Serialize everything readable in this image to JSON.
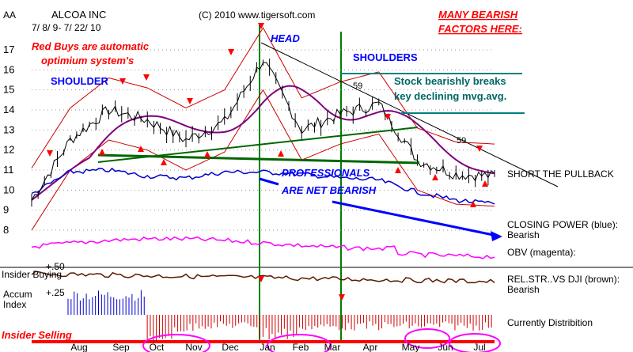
{
  "header": {
    "ticker": "AA",
    "company": "ALCOA INC",
    "dates": "7/ 8/ 9- 7/ 22/ 10",
    "copyright": "(C) 2010 www.tigersoft.com"
  },
  "annotations": {
    "red_buys": "Red Buys are automatic",
    "optimum": "optimium system's",
    "shoulder_left": "SHOULDER",
    "head": "HEAD",
    "shoulders_right": "SHOULDERS",
    "bearish_factors_1": "MANY BEARISH",
    "bearish_factors_2": "FACTORS HERE:",
    "breaks_1": "Stock bearishly breaks",
    "breaks_2": "key declining mvg.avg.",
    "professionals_1": "PROFESSIONALS",
    "professionals_2": "ARE NET BEARISH",
    "short_pullback": "SHORT THE PULLBACK",
    "closing_power_1": "CLOSING POWER (blue):",
    "closing_power_2": "Bearish",
    "obv": "OBV (magenta):",
    "relstr_1": "REL.STR..VS DJI (brown):",
    "relstr_2": "Bearish",
    "distribution": "Currently Distribition",
    "insider_buying": "Insider Buying",
    "accum_1": "Accum",
    "accum_2": "Index",
    "accum_50": "+.50",
    "accum_25": "+.25",
    "insider_selling": "Insider Selling",
    "peak_59_a": "59",
    "peak_59_b": "59"
  },
  "colors": {
    "price": "#000000",
    "bands": "#cc0000",
    "ma": "#800080",
    "closing_power": "#0000cc",
    "obv": "#ff00ff",
    "relstr": "#5a1a00",
    "accum_pos": "#0000cc",
    "accum_neg": "#cc0000",
    "annotation_red": "#ff0000",
    "annotation_blue": "#0000ff",
    "annotation_teal": "#006666",
    "green_line": "#006600"
  },
  "chart_data": {
    "type": "line",
    "title": "ALCOA INC",
    "y_axis_ticks": [
      17,
      16,
      15,
      14,
      13,
      12,
      11,
      10,
      9,
      8
    ],
    "x_axis_labels": [
      "Aug",
      "Sep",
      "Oct",
      "Nov",
      "Dec",
      "Jan",
      "Feb",
      "Mar",
      "Apr",
      "May",
      "Jun",
      "Jul"
    ],
    "ylim": [
      8,
      17.5
    ],
    "series": [
      {
        "name": "CLOSING POWER (blue)",
        "x": [
          "Jul",
          "Aug",
          "Sep",
          "Oct",
          "Nov",
          "Dec",
          "Jan",
          "Feb",
          "Mar",
          "Apr",
          "May",
          "Jun",
          "Jul"
        ],
        "values": [
          9.8,
          10.9,
          11.0,
          10.7,
          10.6,
          10.9,
          10.9,
          10.8,
          10.6,
          10.5,
          9.9,
          9.5,
          9.3
        ]
      },
      {
        "name": "Price",
        "x": [
          "Jul",
          "Aug",
          "Sep",
          "Oct",
          "Nov",
          "Dec",
          "Jan",
          "Feb",
          "Mar",
          "Apr",
          "May",
          "Jun",
          "Jul"
        ],
        "values": [
          9.5,
          12.5,
          14.0,
          13.5,
          12.5,
          13.4,
          16.5,
          13.0,
          13.8,
          14.3,
          11.5,
          10.8,
          10.7
        ]
      }
    ]
  }
}
